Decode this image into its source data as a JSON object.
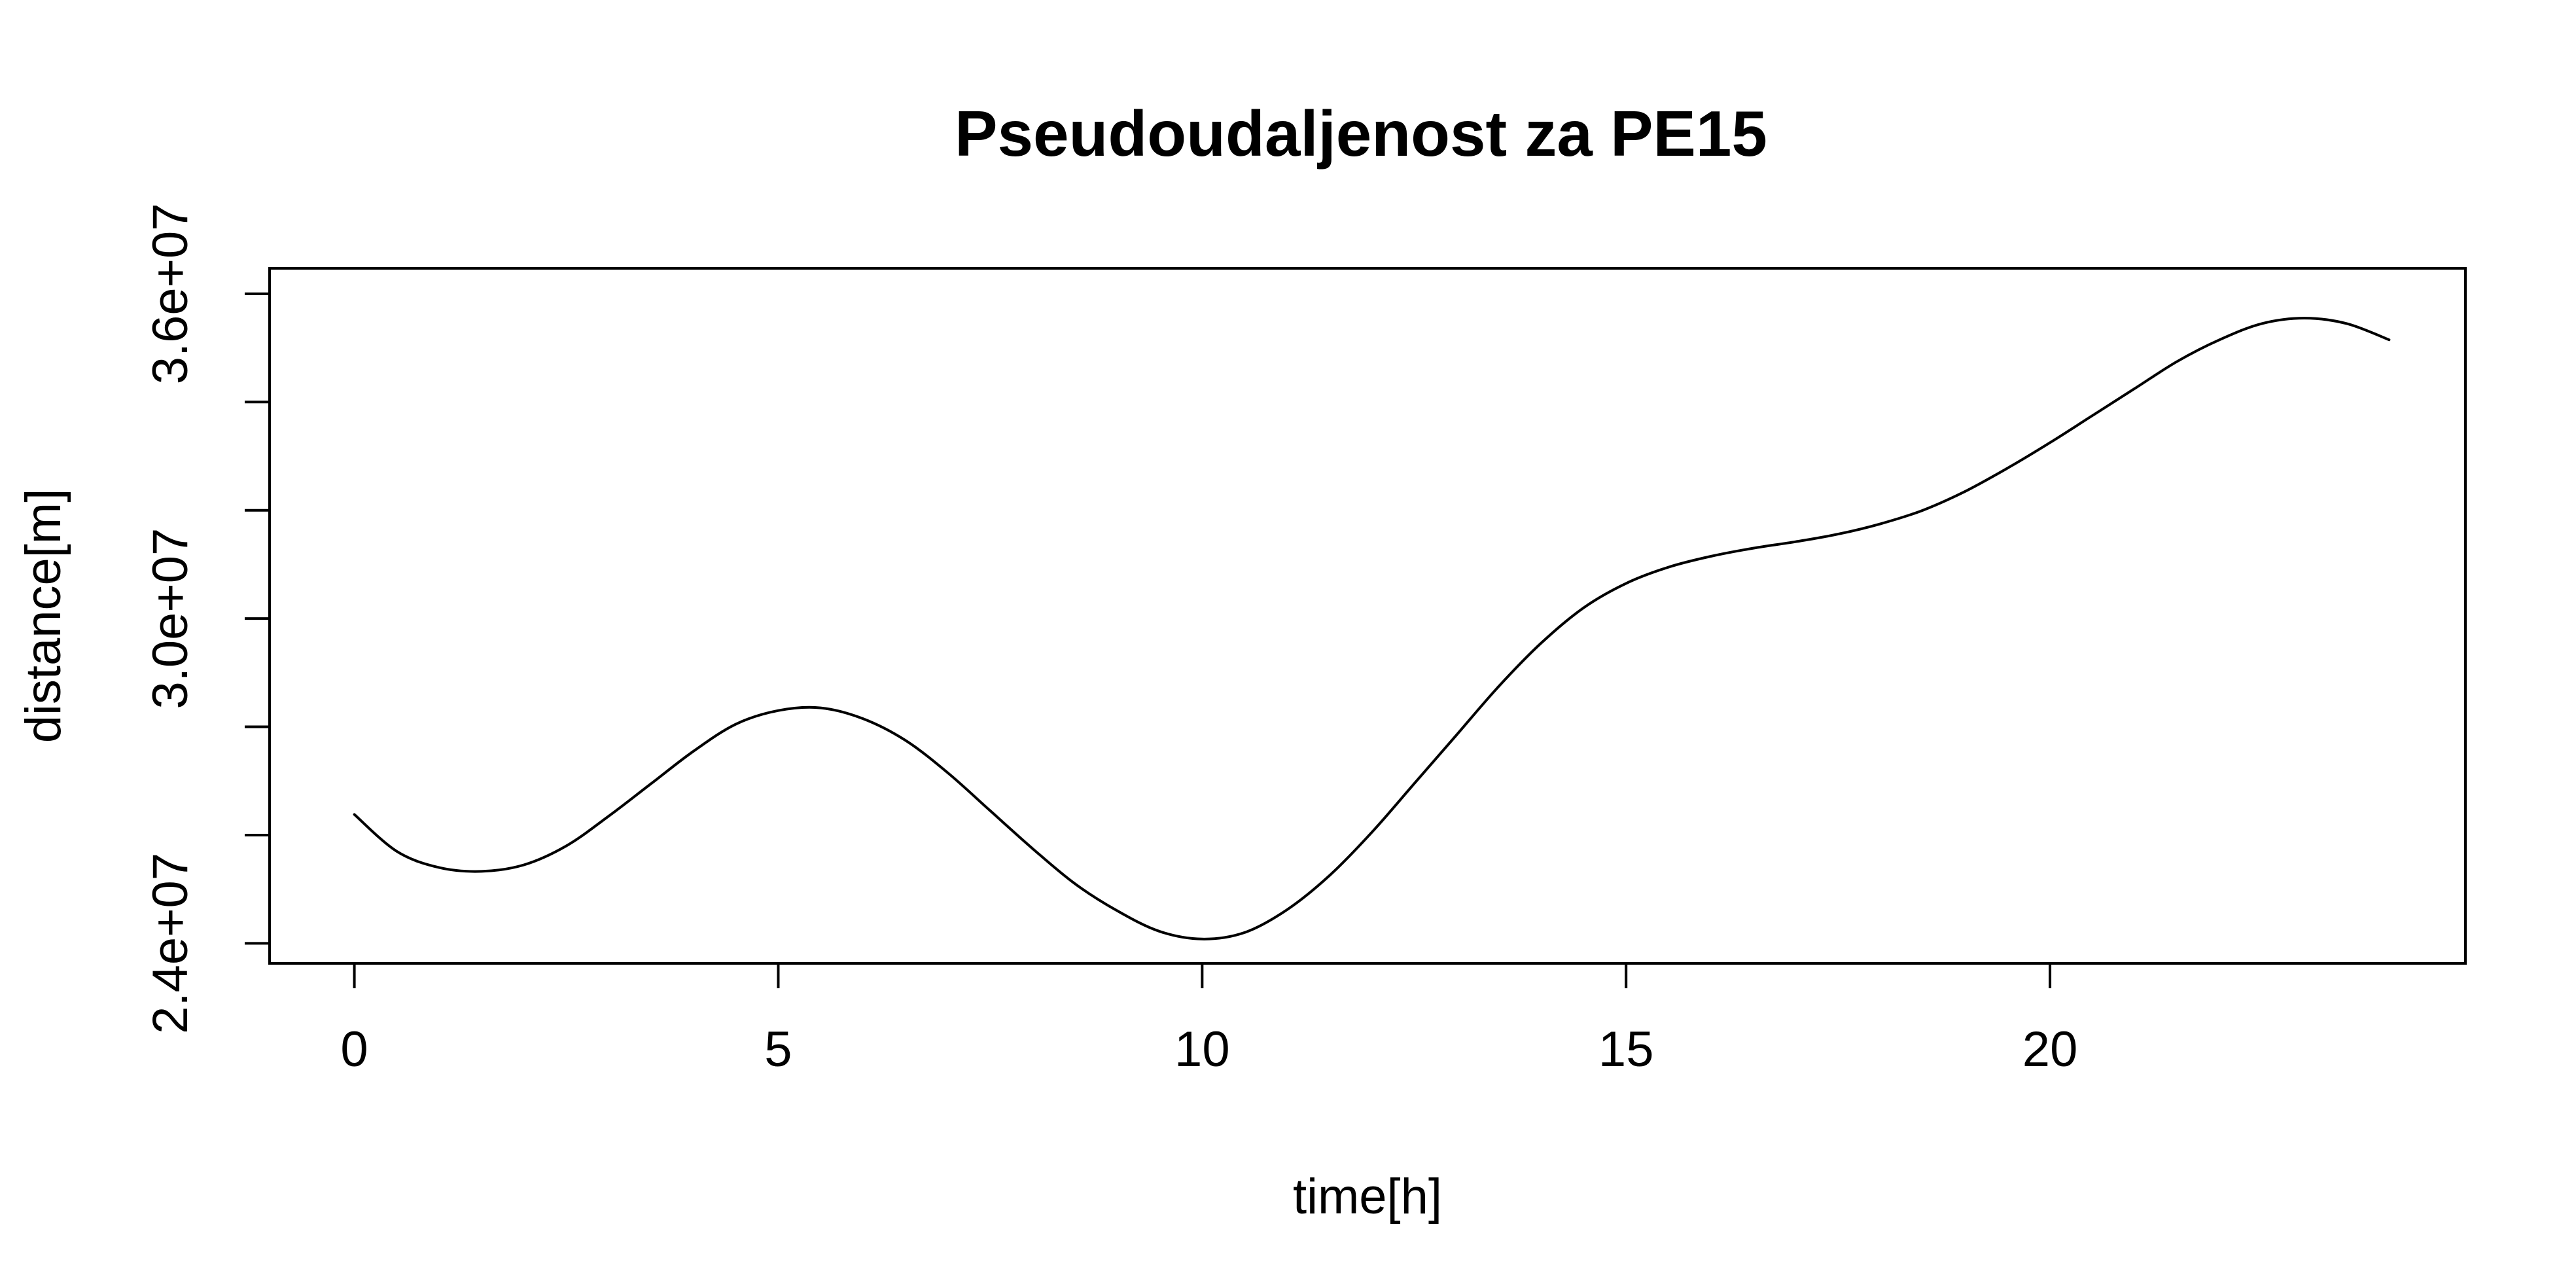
{
  "chart_data": {
    "type": "line",
    "title": "Pseudoudaljenost za PE15",
    "xlabel": "time[h]",
    "ylabel": "distance[m]",
    "xlim": [
      -1.0,
      24.9
    ],
    "ylim": [
      23630000,
      36470000
    ],
    "x_ticks": [
      0,
      5,
      10,
      15,
      20
    ],
    "x_tick_labels": [
      "0",
      "5",
      "10",
      "15",
      "20"
    ],
    "y_ticks": [
      24000000,
      26000000,
      28000000,
      30000000,
      32000000,
      34000000,
      36000000
    ],
    "y_tick_labels": [
      "2.4e+07",
      "",
      "",
      "3.0e+07",
      "",
      "",
      "3.6e+07"
    ],
    "grid": false,
    "legend": "none",
    "line_color": "#000000",
    "series": [
      {
        "x": [
          0,
          0.5,
          1,
          1.5,
          2,
          2.5,
          3,
          3.5,
          4,
          4.5,
          5,
          5.5,
          6,
          6.5,
          7,
          7.5,
          8,
          8.5,
          9,
          9.5,
          10,
          10.5,
          11,
          11.5,
          12,
          12.5,
          13,
          13.5,
          14,
          14.5,
          15,
          15.5,
          16,
          16.5,
          17,
          17.5,
          18,
          18.5,
          19,
          19.5,
          20,
          20.5,
          21,
          21.5,
          22,
          22.5,
          23,
          23.5,
          24
        ],
        "y": [
          26380000,
          25700000,
          25400000,
          25330000,
          25450000,
          25800000,
          26350000,
          26950000,
          27550000,
          28050000,
          28300000,
          28350000,
          28150000,
          27750000,
          27150000,
          26450000,
          25750000,
          25100000,
          24600000,
          24220000,
          24080000,
          24200000,
          24620000,
          25250000,
          26050000,
          26950000,
          27850000,
          28750000,
          29550000,
          30200000,
          30650000,
          30950000,
          31150000,
          31300000,
          31420000,
          31560000,
          31750000,
          32000000,
          32350000,
          32780000,
          33250000,
          33750000,
          34250000,
          34750000,
          35150000,
          35450000,
          35550000,
          35450000,
          35150000
        ]
      }
    ]
  }
}
